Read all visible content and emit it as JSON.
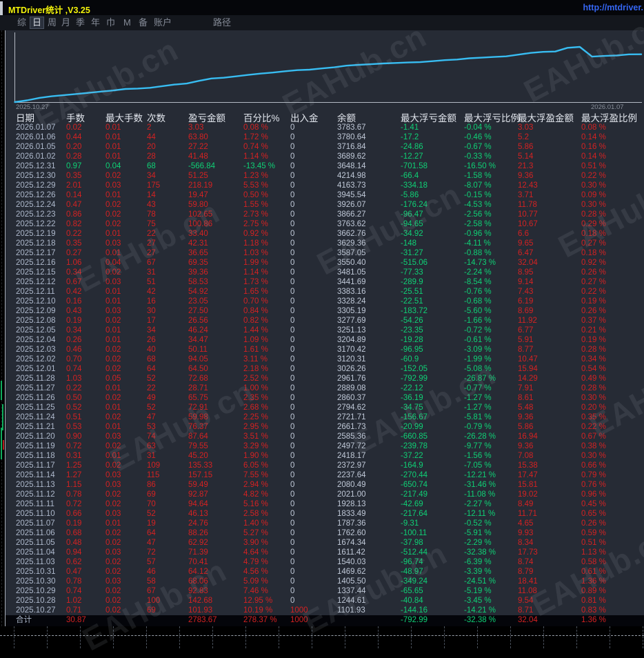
{
  "window": {
    "title": "MTDriver统计 ,V3.25",
    "link": "http://mtdriver.",
    "watermark": "EAHub.cn"
  },
  "toolbar": {
    "items": [
      "综",
      "日",
      "周",
      "月",
      "季",
      "年",
      "巾",
      "M",
      "备",
      "账户",
      "路径"
    ],
    "selected": "日"
  },
  "chart_data": {
    "type": "line",
    "x_start_label": "2025.10.27",
    "x_end_label": "2026.01.07",
    "ylim": [
      1000,
      4215
    ],
    "legend": "none",
    "series": [
      {
        "name": "balance",
        "color": "#38bdf2",
        "values": [
          1000,
          1101.93,
          1244.61,
          1337.44,
          1405.5,
          1469.62,
          1540.03,
          1611.42,
          1674.34,
          1762.6,
          1787.36,
          1833.49,
          1928.13,
          2021.0,
          2080.49,
          2237.64,
          2372.97,
          2418.17,
          2497.72,
          2585.36,
          2661.73,
          2721.71,
          2794.62,
          2860.37,
          2889.08,
          2961.76,
          3026.26,
          3120.31,
          3170.42,
          3204.89,
          3251.13,
          3277.69,
          3305.19,
          3328.24,
          3383.16,
          3441.69,
          3481.05,
          3550.4,
          3587.05,
          3629.36,
          3662.76,
          3763.62,
          3866.27,
          3926.07,
          3945.54,
          4163.73,
          4214.98,
          3648.14,
          3689.62,
          3716.84,
          3780.64,
          3783.67
        ]
      }
    ]
  },
  "table": {
    "headers": [
      "日期",
      "手数",
      "最大手数",
      "次数",
      "盈亏金额",
      "百分比%",
      "出入金",
      "余额",
      "最大浮亏金额",
      "最大浮亏比例",
      "最大浮盈金额",
      "最大浮盈比例"
    ],
    "rows": [
      [
        "2026.01.07",
        "0.02",
        "0.01",
        "2",
        "3.03",
        "0.08 %",
        "0",
        "3783.67",
        "-1.41",
        "-0.04 %",
        "3.03",
        "0.08 %"
      ],
      [
        "2026.01.06",
        "0.44",
        "0.01",
        "44",
        "63.80",
        "1.72 %",
        "0",
        "3780.64",
        "-17.2",
        "-0.46 %",
        "5.2",
        "0.14 %"
      ],
      [
        "2026.01.05",
        "0.20",
        "0.01",
        "20",
        "27.22",
        "0.74 %",
        "0",
        "3716.84",
        "-24.86",
        "-0.67 %",
        "5.86",
        "0.16 %"
      ],
      [
        "2026.01.02",
        "0.28",
        "0.01",
        "28",
        "41.48",
        "1.14 %",
        "0",
        "3689.62",
        "-12.27",
        "-0.33 %",
        "5.14",
        "0.14 %"
      ],
      [
        "2025.12.31",
        "0.97",
        "0.04",
        "68",
        "-566.84",
        "-13.45 %",
        "0",
        "3648.14",
        "-701.58",
        "-16.50 %",
        "21.3",
        "0.51 %"
      ],
      [
        "2025.12.30",
        "0.35",
        "0.02",
        "34",
        "51.25",
        "1.23 %",
        "0",
        "4214.98",
        "-66.4",
        "-1.58 %",
        "9.36",
        "0.22 %"
      ],
      [
        "2025.12.29",
        "2.01",
        "0.03",
        "175",
        "218.19",
        "5.53 %",
        "0",
        "4163.73",
        "-334.18",
        "-8.07 %",
        "12.43",
        "0.30 %"
      ],
      [
        "2025.12.26",
        "0.14",
        "0.01",
        "14",
        "19.47",
        "0.50 %",
        "0",
        "3945.54",
        "-5.86",
        "-0.15 %",
        "3.71",
        "0.09 %"
      ],
      [
        "2025.12.24",
        "0.47",
        "0.02",
        "43",
        "59.80",
        "1.55 %",
        "0",
        "3926.07",
        "-176.24",
        "-4.53 %",
        "11.78",
        "0.30 %"
      ],
      [
        "2025.12.23",
        "0.86",
        "0.02",
        "78",
        "102.65",
        "2.73 %",
        "0",
        "3866.27",
        "-96.47",
        "-2.56 %",
        "10.77",
        "0.28 %"
      ],
      [
        "2025.12.22",
        "0.82",
        "0.02",
        "75",
        "100.86",
        "2.75 %",
        "0",
        "3763.62",
        "-94.65",
        "-2.58 %",
        "10.67",
        "0.29 %"
      ],
      [
        "2025.12.19",
        "0.22",
        "0.01",
        "22",
        "33.40",
        "0.92 %",
        "0",
        "3662.76",
        "-34.92",
        "-0.96 %",
        "6.6",
        "0.18 %"
      ],
      [
        "2025.12.18",
        "0.35",
        "0.03",
        "27",
        "42.31",
        "1.18 %",
        "0",
        "3629.36",
        "-148",
        "-4.11 %",
        "9.65",
        "0.27 %"
      ],
      [
        "2025.12.17",
        "0.27",
        "0.01",
        "27",
        "36.65",
        "1.03 %",
        "0",
        "3587.05",
        "-31.27",
        "-0.88 %",
        "6.47",
        "0.18 %"
      ],
      [
        "2025.12.16",
        "1.06",
        "0.04",
        "67",
        "69.35",
        "1.99 %",
        "0",
        "3550.40",
        "-515.06",
        "-14.73 %",
        "32.04",
        "0.92 %"
      ],
      [
        "2025.12.15",
        "0.34",
        "0.02",
        "31",
        "39.36",
        "1.14 %",
        "0",
        "3481.05",
        "-77.33",
        "-2.24 %",
        "8.95",
        "0.26 %"
      ],
      [
        "2025.12.12",
        "0.67",
        "0.03",
        "51",
        "58.53",
        "1.73 %",
        "0",
        "3441.69",
        "-289.9",
        "-8.54 %",
        "9.14",
        "0.27 %"
      ],
      [
        "2025.12.11",
        "0.42",
        "0.01",
        "42",
        "54.92",
        "1.65 %",
        "0",
        "3383.16",
        "-25.51",
        "-0.76 %",
        "7.43",
        "0.22 %"
      ],
      [
        "2025.12.10",
        "0.16",
        "0.01",
        "16",
        "23.05",
        "0.70 %",
        "0",
        "3328.24",
        "-22.51",
        "-0.68 %",
        "6.19",
        "0.19 %"
      ],
      [
        "2025.12.09",
        "0.43",
        "0.03",
        "30",
        "27.50",
        "0.84 %",
        "0",
        "3305.19",
        "-183.72",
        "-5.60 %",
        "8.69",
        "0.26 %"
      ],
      [
        "2025.12.08",
        "0.19",
        "0.02",
        "17",
        "26.56",
        "0.82 %",
        "0",
        "3277.69",
        "-54.26",
        "-1.66 %",
        "11.92",
        "0.37 %"
      ],
      [
        "2025.12.05",
        "0.34",
        "0.01",
        "34",
        "46.24",
        "1.44 %",
        "0",
        "3251.13",
        "-23.35",
        "-0.72 %",
        "6.77",
        "0.21 %"
      ],
      [
        "2025.12.04",
        "0.26",
        "0.01",
        "26",
        "34.47",
        "1.09 %",
        "0",
        "3204.89",
        "-19.28",
        "-0.61 %",
        "5.91",
        "0.19 %"
      ],
      [
        "2025.12.03",
        "0.46",
        "0.02",
        "40",
        "50.11",
        "1.61 %",
        "0",
        "3170.42",
        "-96.95",
        "-3.09 %",
        "8.77",
        "0.28 %"
      ],
      [
        "2025.12.02",
        "0.70",
        "0.02",
        "68",
        "94.05",
        "3.11 %",
        "0",
        "3120.31",
        "-60.9",
        "-1.99 %",
        "10.47",
        "0.34 %"
      ],
      [
        "2025.12.01",
        "0.74",
        "0.02",
        "64",
        "64.50",
        "2.18 %",
        "0",
        "3026.26",
        "-152.05",
        "-5.08 %",
        "15.94",
        "0.54 %"
      ],
      [
        "2025.11.28",
        "1.03",
        "0.05",
        "52",
        "72.68",
        "2.52 %",
        "0",
        "2961.76",
        "-792.99",
        "-26.87 %",
        "14.29",
        "0.49 %"
      ],
      [
        "2025.11.27",
        "0.22",
        "0.01",
        "22",
        "28.71",
        "1.00 %",
        "0",
        "2889.08",
        "-22.12",
        "-0.77 %",
        "7.91",
        "0.28 %"
      ],
      [
        "2025.11.26",
        "0.50",
        "0.02",
        "49",
        "65.75",
        "2.35 %",
        "0",
        "2860.37",
        "-36.19",
        "-1.27 %",
        "8.61",
        "0.30 %"
      ],
      [
        "2025.11.25",
        "0.52",
        "0.01",
        "52",
        "72.91",
        "2.68 %",
        "0",
        "2794.62",
        "-34.75",
        "-1.27 %",
        "5.48",
        "0.20 %"
      ],
      [
        "2025.11.24",
        "0.51",
        "0.02",
        "47",
        "59.98",
        "2.25 %",
        "0",
        "2721.71",
        "-156.67",
        "-5.81 %",
        "9.36",
        "0.35 %"
      ],
      [
        "2025.11.21",
        "0.53",
        "0.01",
        "53",
        "76.37",
        "2.95 %",
        "0",
        "2661.73",
        "-20.99",
        "-0.79 %",
        "5.86",
        "0.22 %"
      ],
      [
        "2025.11.20",
        "0.90",
        "0.03",
        "74",
        "87.64",
        "3.51 %",
        "0",
        "2585.36",
        "-660.85",
        "-26.28 %",
        "16.94",
        "0.67 %"
      ],
      [
        "2025.11.19",
        "0.72",
        "0.02",
        "63",
        "79.55",
        "3.29 %",
        "0",
        "2497.72",
        "-239.78",
        "-9.77 %",
        "9.36",
        "0.38 %"
      ],
      [
        "2025.11.18",
        "0.31",
        "0.01",
        "31",
        "45.20",
        "1.90 %",
        "0",
        "2418.17",
        "-37.22",
        "-1.56 %",
        "7.08",
        "0.30 %"
      ],
      [
        "2025.11.17",
        "1.25",
        "0.02",
        "109",
        "135.33",
        "6.05 %",
        "0",
        "2372.97",
        "-164.9",
        "-7.05 %",
        "15.38",
        "0.66 %"
      ],
      [
        "2025.11.14",
        "1.27",
        "0.03",
        "115",
        "157.15",
        "7.55 %",
        "0",
        "2237.64",
        "-270.44",
        "-12.21 %",
        "17.47",
        "0.79 %"
      ],
      [
        "2025.11.13",
        "1.15",
        "0.03",
        "86",
        "59.49",
        "2.94 %",
        "0",
        "2080.49",
        "-650.74",
        "-31.46 %",
        "15.81",
        "0.76 %"
      ],
      [
        "2025.11.12",
        "0.78",
        "0.02",
        "69",
        "92.87",
        "4.82 %",
        "0",
        "2021.00",
        "-217.49",
        "-11.08 %",
        "19.02",
        "0.96 %"
      ],
      [
        "2025.11.11",
        "0.72",
        "0.02",
        "70",
        "94.64",
        "5.16 %",
        "0",
        "1928.13",
        "-42.69",
        "-2.27 %",
        "8.49",
        "0.45 %"
      ],
      [
        "2025.11.10",
        "0.66",
        "0.03",
        "52",
        "46.13",
        "2.58 %",
        "0",
        "1833.49",
        "-217.64",
        "-12.11 %",
        "11.71",
        "0.65 %"
      ],
      [
        "2025.11.07",
        "0.19",
        "0.01",
        "19",
        "24.76",
        "1.40 %",
        "0",
        "1787.36",
        "-9.31",
        "-0.52 %",
        "4.65",
        "0.26 %"
      ],
      [
        "2025.11.06",
        "0.68",
        "0.02",
        "64",
        "88.26",
        "5.27 %",
        "0",
        "1762.60",
        "-100.11",
        "-5.91 %",
        "9.93",
        "0.59 %"
      ],
      [
        "2025.11.05",
        "0.48",
        "0.02",
        "47",
        "62.92",
        "3.90 %",
        "0",
        "1674.34",
        "-37.98",
        "-2.29 %",
        "8.34",
        "0.51 %"
      ],
      [
        "2025.11.04",
        "0.94",
        "0.03",
        "72",
        "71.39",
        "4.64 %",
        "0",
        "1611.42",
        "-512.44",
        "-32.38 %",
        "17.73",
        "1.13 %"
      ],
      [
        "2025.11.03",
        "0.62",
        "0.02",
        "57",
        "70.41",
        "4.79 %",
        "0",
        "1540.03",
        "-96.74",
        "-6.39 %",
        "8.74",
        "0.58 %"
      ],
      [
        "2025.10.31",
        "0.47",
        "0.02",
        "46",
        "64.12",
        "4.56 %",
        "0",
        "1469.62",
        "-48.97",
        "-3.39 %",
        "8.79",
        "0.61 %"
      ],
      [
        "2025.10.30",
        "0.78",
        "0.03",
        "58",
        "68.06",
        "5.09 %",
        "0",
        "1405.50",
        "-349.24",
        "-24.51 %",
        "18.41",
        "1.36 %"
      ],
      [
        "2025.10.29",
        "0.74",
        "0.02",
        "67",
        "92.83",
        "7.46 %",
        "0",
        "1337.44",
        "-65.65",
        "-5.19 %",
        "11.08",
        "0.89 %"
      ],
      [
        "2025.10.28",
        "1.02",
        "0.02",
        "100",
        "142.68",
        "12.95 %",
        "0",
        "1244.61",
        "-40.84",
        "-3.45 %",
        "9.54",
        "0.81 %"
      ],
      [
        "2025.10.27",
        "0.71",
        "0.02",
        "69",
        "101.93",
        "10.19 %",
        "1000",
        "1101.93",
        "-144.16",
        "-14.21 %",
        "8.71",
        "0.83 %"
      ]
    ],
    "total": [
      "合计",
      "30.87",
      "",
      "",
      "2783.67",
      "278.37 %",
      "1000",
      "",
      "-792.99",
      "-32.38 %",
      "32.04",
      "1.36 %"
    ]
  },
  "colors": {
    "profit_red": "#d42222",
    "loss_green": "#0fd075",
    "chart_line": "#38bdf2",
    "title_yellow": "#f4f40a",
    "link_blue": "#3566f2"
  }
}
